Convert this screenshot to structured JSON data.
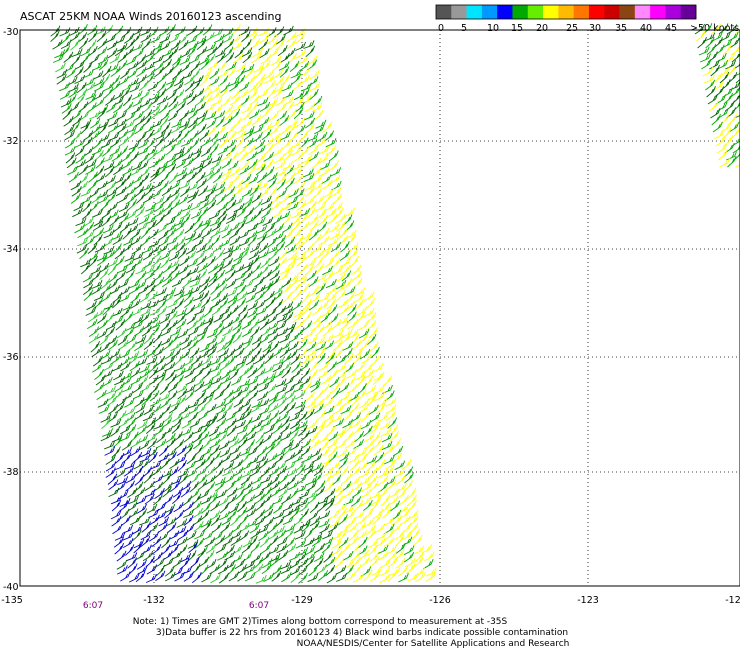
{
  "title": "ASCAT 25KM NOAA Winds 20160123 ascending",
  "colorbar": {
    "colors": [
      "#555555",
      "#999999",
      "#00e5ff",
      "#0099ff",
      "#0000ff",
      "#00aa00",
      "#66ee00",
      "#ffff00",
      "#ffbb00",
      "#ff7700",
      "#ff0000",
      "#cc0000",
      "#8b4513",
      "#ff88ff",
      "#ff00ff",
      "#aa00dd",
      "#660099"
    ],
    "labels": [
      "0",
      "5",
      "10",
      "15",
      "20",
      "25",
      "30",
      "35",
      "40",
      "45",
      ">50 knots"
    ]
  },
  "axes": {
    "lat_labels": [
      "-30",
      "-32",
      "-34",
      "-36",
      "-38",
      "-40"
    ],
    "lon_labels": [
      "-135",
      "-132",
      "-129",
      "-126",
      "-123",
      "-12"
    ]
  },
  "pass_times": [
    "6:07",
    "6:07"
  ],
  "notes": [
    "Note: 1) Times are GMT 2)Times along bottom correspond to measurement at -35S",
    "3)Data buffer is 22 hrs from 20160123 4) Black wind barbs indicate possible contamination",
    "NOAA/NESDIS/Center for Satellite Applications and Research"
  ],
  "barb_colors": {
    "blue": "#0000cc",
    "dark_green": "#006600",
    "green": "#00aa00",
    "light_green": "#33cc33",
    "yellow": "#ffff00"
  }
}
